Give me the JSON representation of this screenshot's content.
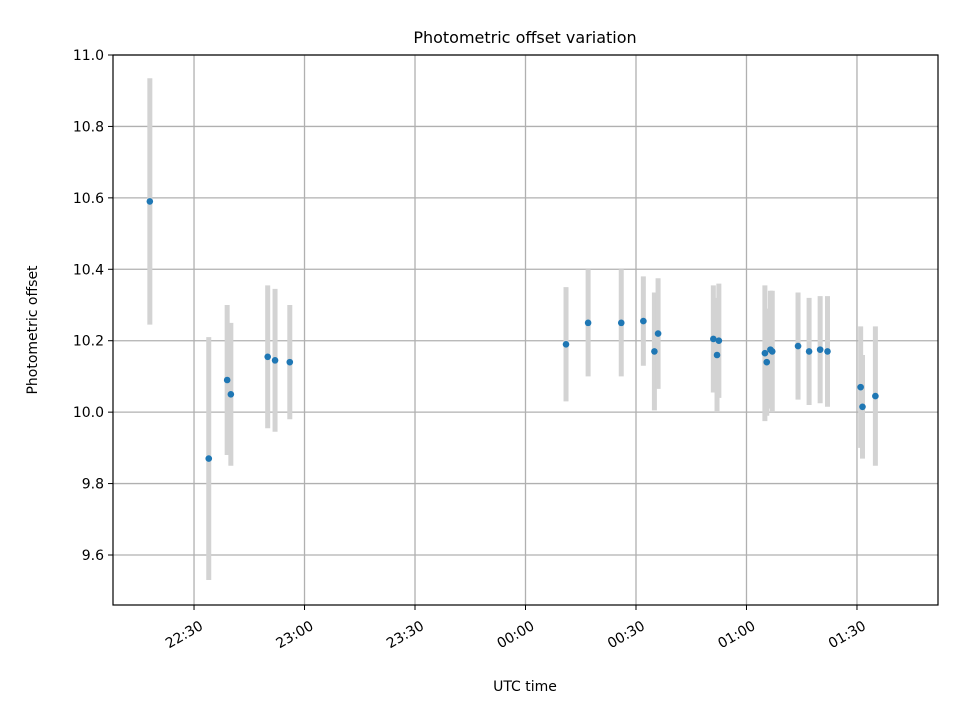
{
  "chart_data": {
    "type": "scatter",
    "title": "Photometric offset variation",
    "xlabel": "UTC time",
    "ylabel": "Photometric offset",
    "x_is_time": true,
    "xlim": [
      "22:08",
      "01:52"
    ],
    "ylim": [
      9.46,
      11.0
    ],
    "xticks": [
      "22:30",
      "23:00",
      "23:30",
      "00:00",
      "00:30",
      "01:00",
      "01:30"
    ],
    "yticks": [
      "9.6",
      "9.8",
      "10.0",
      "10.2",
      "10.4",
      "10.6",
      "10.8",
      "11.0"
    ],
    "grid": true,
    "colors": {
      "marker": "#1f77b4",
      "errorbar": "#d3d3d3",
      "grid": "#b0b0b0"
    },
    "points": [
      {
        "x": "22:18",
        "y": 10.59,
        "err": 0.345
      },
      {
        "x": "22:34",
        "y": 9.87,
        "err": 0.34
      },
      {
        "x": "22:39",
        "y": 10.09,
        "err": 0.21
      },
      {
        "x": "22:40",
        "y": 10.05,
        "err": 0.2
      },
      {
        "x": "22:50",
        "y": 10.155,
        "err": 0.2
      },
      {
        "x": "22:52",
        "y": 10.145,
        "err": 0.2
      },
      {
        "x": "22:56",
        "y": 10.14,
        "err": 0.16
      },
      {
        "x": "00:11",
        "y": 10.19,
        "err": 0.16
      },
      {
        "x": "00:17",
        "y": 10.25,
        "err": 0.15
      },
      {
        "x": "00:26",
        "y": 10.25,
        "err": 0.15
      },
      {
        "x": "00:32",
        "y": 10.255,
        "err": 0.125
      },
      {
        "x": "00:35",
        "y": 10.17,
        "err": 0.165
      },
      {
        "x": "00:36",
        "y": 10.22,
        "err": 0.155
      },
      {
        "x": "00:51",
        "y": 10.205,
        "err": 0.15
      },
      {
        "x": "00:52",
        "y": 10.16,
        "err": 0.16
      },
      {
        "x": "00:52.5",
        "y": 10.2,
        "err": 0.16
      },
      {
        "x": "01:05",
        "y": 10.165,
        "err": 0.19
      },
      {
        "x": "01:05.5",
        "y": 10.14,
        "err": 0.15
      },
      {
        "x": "01:06.5",
        "y": 10.175,
        "err": 0.165
      },
      {
        "x": "01:07",
        "y": 10.17,
        "err": 0.17
      },
      {
        "x": "01:14",
        "y": 10.185,
        "err": 0.15
      },
      {
        "x": "01:17",
        "y": 10.17,
        "err": 0.15
      },
      {
        "x": "01:20",
        "y": 10.175,
        "err": 0.15
      },
      {
        "x": "01:22",
        "y": 10.17,
        "err": 0.155
      },
      {
        "x": "01:31",
        "y": 10.07,
        "err": 0.17
      },
      {
        "x": "01:31.5",
        "y": 10.015,
        "err": 0.145
      },
      {
        "x": "01:35",
        "y": 10.045,
        "err": 0.195
      }
    ]
  }
}
